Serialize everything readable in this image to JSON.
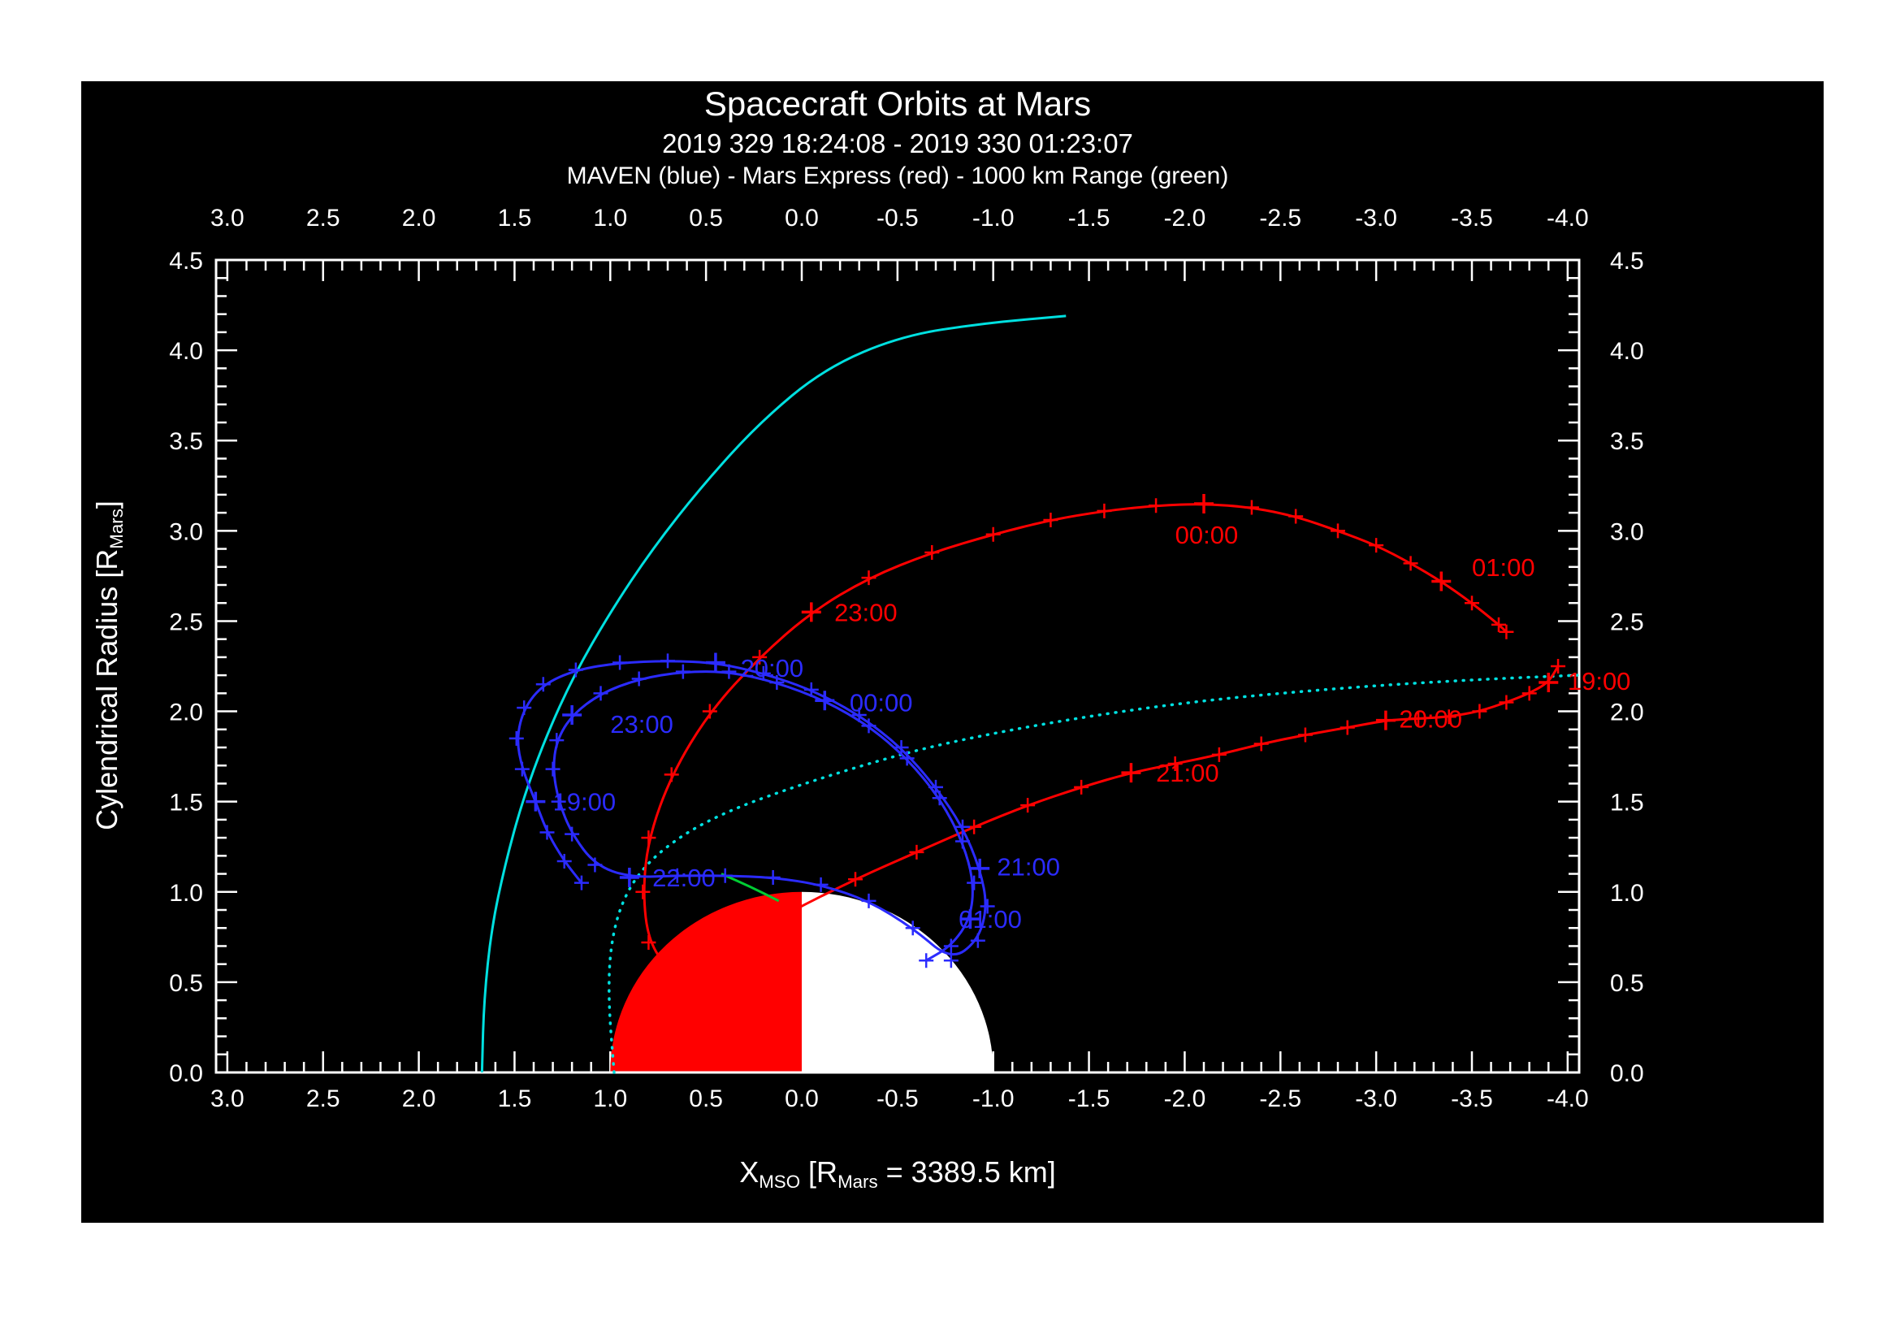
{
  "page": {
    "background": "#ffffff",
    "panel_background": "#000000"
  },
  "header": {
    "title": "Spacecraft Orbits at Mars",
    "time_range": "2019 329 18:24:08 - 2019 330 01:23:07",
    "legend_line": "MAVEN (blue) - Mars Express (red) - 1000 km Range (green)"
  },
  "axes": {
    "x_label_parts": {
      "main": "X",
      "sub": "MSO",
      "mid": " [R",
      "sub2": "Mars",
      "rest": " = 3389.5 km]"
    },
    "y_label_parts": {
      "main": "Cylendrical Radius [R",
      "sub": "Mars",
      "rest": "]"
    },
    "x_ticks": [
      3.0,
      2.5,
      2.0,
      1.5,
      1.0,
      0.5,
      0.0,
      -0.5,
      -1.0,
      -1.5,
      -2.0,
      -2.5,
      -3.0,
      -3.5,
      -4.0
    ],
    "y_ticks": [
      0.0,
      0.5,
      1.0,
      1.5,
      2.0,
      2.5,
      3.0,
      3.5,
      4.0,
      4.5
    ],
    "xlim": [
      3.06,
      -4.06
    ],
    "ylim": [
      0.0,
      4.5
    ],
    "minor_step": 0.1
  },
  "chart_data": {
    "type": "line",
    "title": "Spacecraft Orbits at Mars",
    "subtitle": "2019 329 18:24:08 - 2019 330 01:23:07",
    "legend": "MAVEN (blue) - Mars Express (red) - 1000 km Range (green)",
    "xlabel": "X_MSO [R_Mars = 3389.5 km]",
    "ylabel": "Cylendrical Radius [R_Mars]",
    "x_axis_reversed": true,
    "grid": false,
    "mars": {
      "radius": 1.0,
      "radius_km": 3389.5,
      "sunward_half_color": "#ff0000",
      "antisunward_half_color": "#ffffff"
    },
    "series": [
      {
        "id": "boundary-solid",
        "name": "bow-shock-curve",
        "color": "#00e0e0",
        "style": "solid",
        "marker": false,
        "points": [
          [
            1.67,
            0.0
          ],
          [
            1.66,
            0.4
          ],
          [
            1.62,
            0.8
          ],
          [
            1.55,
            1.15
          ],
          [
            1.46,
            1.5
          ],
          [
            1.34,
            1.85
          ],
          [
            1.19,
            2.2
          ],
          [
            1.0,
            2.55
          ],
          [
            0.78,
            2.9
          ],
          [
            0.52,
            3.25
          ],
          [
            0.22,
            3.6
          ],
          [
            -0.12,
            3.9
          ],
          [
            -0.52,
            4.08
          ],
          [
            -0.95,
            4.15
          ],
          [
            -1.38,
            4.19
          ]
        ],
        "hour_indices": [],
        "labels": []
      },
      {
        "id": "boundary-dotted",
        "name": "pileup-boundary-curve",
        "color": "#00e0e0",
        "style": "dotted",
        "marker": false,
        "points": [
          [
            0.98,
            0.0
          ],
          [
            1.01,
            0.4
          ],
          [
            1.0,
            0.7
          ],
          [
            0.94,
            0.95
          ],
          [
            0.82,
            1.15
          ],
          [
            0.62,
            1.32
          ],
          [
            0.38,
            1.45
          ],
          [
            0.1,
            1.56
          ],
          [
            -0.25,
            1.68
          ],
          [
            -0.65,
            1.8
          ],
          [
            -1.1,
            1.9
          ],
          [
            -1.6,
            1.99
          ],
          [
            -2.1,
            2.06
          ],
          [
            -2.6,
            2.11
          ],
          [
            -3.1,
            2.15
          ],
          [
            -3.6,
            2.18
          ],
          [
            -4.05,
            2.2
          ]
        ],
        "hour_indices": [],
        "labels": []
      },
      {
        "id": "mars-express",
        "name": "Mars Express",
        "color": "#ff0000",
        "style": "solid",
        "marker": true,
        "points": [
          [
            -3.95,
            2.25
          ],
          [
            -3.9,
            2.16
          ],
          [
            -3.8,
            2.1
          ],
          [
            -3.68,
            2.05
          ],
          [
            -3.54,
            2.0
          ],
          [
            -3.38,
            1.97
          ],
          [
            -3.22,
            1.96
          ],
          [
            -3.05,
            1.95
          ],
          [
            -2.85,
            1.91
          ],
          [
            -2.63,
            1.87
          ],
          [
            -2.4,
            1.82
          ],
          [
            -2.18,
            1.76
          ],
          [
            -1.95,
            1.71
          ],
          [
            -1.72,
            1.66
          ],
          [
            -1.46,
            1.58
          ],
          [
            -1.18,
            1.48
          ],
          [
            -0.9,
            1.36
          ],
          [
            -0.6,
            1.22
          ],
          [
            -0.28,
            1.07
          ],
          [
            0.08,
            0.88
          ],
          [
            0.45,
            0.65
          ],
          [
            0.68,
            0.55
          ],
          [
            0.8,
            0.72
          ],
          [
            0.83,
            1.0
          ],
          [
            0.8,
            1.3
          ],
          [
            0.68,
            1.65
          ],
          [
            0.48,
            2.0
          ],
          [
            0.22,
            2.3
          ],
          [
            -0.05,
            2.55
          ],
          [
            -0.35,
            2.74
          ],
          [
            -0.68,
            2.88
          ],
          [
            -1.0,
            2.98
          ],
          [
            -1.3,
            3.06
          ],
          [
            -1.58,
            3.11
          ],
          [
            -1.85,
            3.14
          ],
          [
            -2.1,
            3.15
          ],
          [
            -2.35,
            3.13
          ],
          [
            -2.58,
            3.08
          ],
          [
            -2.8,
            3.0
          ],
          [
            -3.0,
            2.92
          ],
          [
            -3.18,
            2.82
          ],
          [
            -3.34,
            2.72
          ],
          [
            -3.5,
            2.6
          ],
          [
            -3.64,
            2.48
          ],
          [
            -3.68,
            2.44
          ]
        ],
        "hour_indices": [
          1,
          7,
          13,
          19,
          28,
          35,
          41
        ],
        "labels": [
          {
            "text": "19:00",
            "x": -4.0,
            "y": 2.17
          },
          {
            "text": "20:00",
            "x": -3.12,
            "y": 1.96
          },
          {
            "text": "21:00",
            "x": -1.85,
            "y": 1.66
          },
          {
            "text": "23:00",
            "x": -0.17,
            "y": 2.55
          },
          {
            "text": "00:00",
            "x": -1.95,
            "y": 2.98
          },
          {
            "text": "01:00",
            "x": -3.5,
            "y": 2.8
          }
        ]
      },
      {
        "id": "maven",
        "name": "MAVEN",
        "color": "#2b2bff",
        "style": "solid",
        "marker": true,
        "points": [
          [
            1.15,
            1.05
          ],
          [
            1.24,
            1.17
          ],
          [
            1.33,
            1.33
          ],
          [
            1.39,
            1.5
          ],
          [
            1.46,
            1.68
          ],
          [
            1.49,
            1.85
          ],
          [
            1.45,
            2.02
          ],
          [
            1.35,
            2.15
          ],
          [
            1.18,
            2.23
          ],
          [
            0.95,
            2.27
          ],
          [
            0.7,
            2.28
          ],
          [
            0.45,
            2.27
          ],
          [
            0.2,
            2.21
          ],
          [
            -0.05,
            2.12
          ],
          [
            -0.3,
            1.98
          ],
          [
            -0.52,
            1.8
          ],
          [
            -0.7,
            1.58
          ],
          [
            -0.84,
            1.36
          ],
          [
            -0.93,
            1.13
          ],
          [
            -0.97,
            0.92
          ],
          [
            -0.92,
            0.73
          ],
          [
            -0.78,
            0.62
          ],
          [
            -0.58,
            0.8
          ],
          [
            -0.35,
            0.95
          ],
          [
            -0.1,
            1.04
          ],
          [
            0.15,
            1.08
          ],
          [
            0.4,
            1.09
          ],
          [
            0.65,
            1.09
          ],
          [
            0.9,
            1.08
          ],
          [
            1.08,
            1.15
          ],
          [
            1.2,
            1.32
          ],
          [
            1.27,
            1.5
          ],
          [
            1.3,
            1.68
          ],
          [
            1.28,
            1.84
          ],
          [
            1.2,
            1.98
          ],
          [
            1.05,
            2.1
          ],
          [
            0.85,
            2.18
          ],
          [
            0.62,
            2.22
          ],
          [
            0.38,
            2.22
          ],
          [
            0.13,
            2.16
          ],
          [
            -0.12,
            2.06
          ],
          [
            -0.35,
            1.92
          ],
          [
            -0.55,
            1.74
          ],
          [
            -0.72,
            1.52
          ],
          [
            -0.84,
            1.28
          ],
          [
            -0.9,
            1.05
          ],
          [
            -0.88,
            0.85
          ],
          [
            -0.78,
            0.7
          ],
          [
            -0.65,
            0.62
          ]
        ],
        "hour_indices": [
          3,
          11,
          18,
          28,
          34,
          40,
          46
        ],
        "labels": [
          {
            "text": "19:00",
            "x": 1.3,
            "y": 1.5
          },
          {
            "text": "20:00",
            "x": 0.32,
            "y": 2.24
          },
          {
            "text": "21:00",
            "x": -1.02,
            "y": 1.14
          },
          {
            "text": "22:00",
            "x": 0.78,
            "y": 1.08
          },
          {
            "text": "23:00",
            "x": 1.0,
            "y": 1.93
          },
          {
            "text": "00:00",
            "x": -0.25,
            "y": 2.05
          },
          {
            "text": "01:00",
            "x": -0.82,
            "y": 0.85
          }
        ]
      },
      {
        "id": "range-1000km",
        "name": "1000 km Range",
        "color": "#00cc33",
        "style": "solid",
        "marker": false,
        "points": [
          [
            0.42,
            1.1
          ],
          [
            0.27,
            1.03
          ],
          [
            0.12,
            0.95
          ]
        ],
        "hour_indices": [],
        "labels": []
      }
    ]
  }
}
